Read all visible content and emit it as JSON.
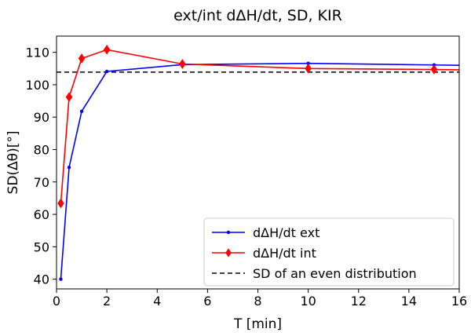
{
  "chart_data": {
    "type": "line",
    "title": "ext/int dΔH/dt, SD, KIR",
    "xlabel": "T [min]",
    "ylabel": "SD(Δθ)[°]",
    "xlim": [
      0,
      16
    ],
    "ylim": [
      37,
      115
    ],
    "xticks": [
      0,
      2,
      4,
      6,
      8,
      10,
      12,
      14,
      16
    ],
    "yticks": [
      40,
      50,
      60,
      70,
      80,
      90,
      100,
      110
    ],
    "grid": false,
    "legend_position": "lower-right",
    "series": [
      {
        "name": "dΔH/dt ext",
        "color": "#0000ff",
        "marker": "dot",
        "x": [
          0.17,
          0.5,
          1,
          2,
          5,
          10,
          15,
          16
        ],
        "y": [
          40,
          74.5,
          91.8,
          104.1,
          106.2,
          106.6,
          106.1,
          106.0
        ]
      },
      {
        "name": "dΔH/dt int",
        "color": "#ff0000",
        "marker": "diamond",
        "x": [
          0.17,
          0.5,
          1,
          2,
          5,
          10,
          15,
          16
        ],
        "y": [
          63.4,
          96.2,
          108.1,
          110.8,
          106.4,
          105.0,
          104.7,
          104.6
        ]
      }
    ],
    "reference_line": {
      "name": "SD of an even distribution",
      "value": 103.9,
      "color": "#000000",
      "style": "dashed"
    }
  }
}
